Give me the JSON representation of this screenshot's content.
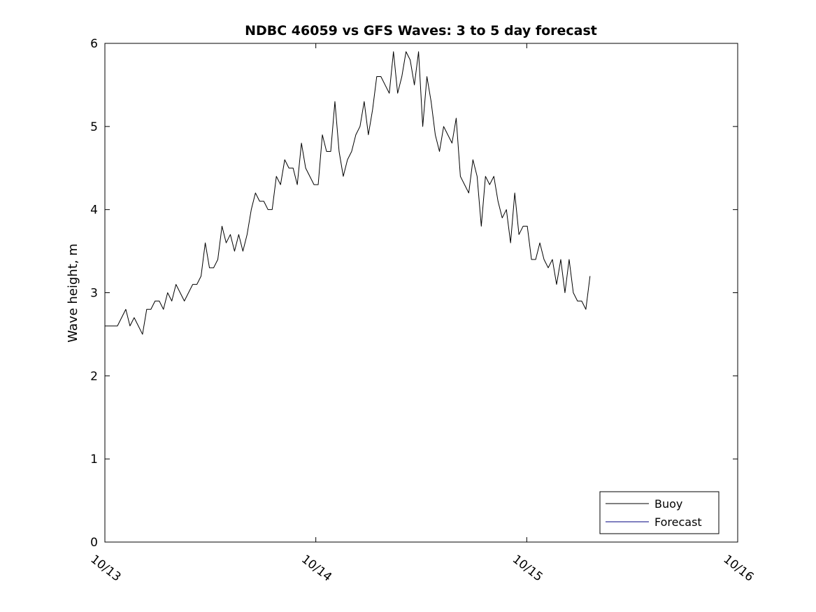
{
  "chart_data": {
    "type": "line",
    "title": "NDBC 46059 vs GFS Waves: 3 to 5 day forecast",
    "xlabel": "",
    "ylabel": "Wave height, m",
    "ylim": [
      0,
      6
    ],
    "xlim_days": [
      0,
      3
    ],
    "y_ticks": [
      0,
      1,
      2,
      3,
      4,
      5,
      6
    ],
    "x_tick_positions": [
      0,
      1,
      2,
      3
    ],
    "x_tick_labels": [
      "10/13",
      "10/14",
      "10/15",
      "10/16"
    ],
    "grid": false,
    "background_color": "#ffffff",
    "axis_color": "#000000",
    "legend": {
      "position": "bottom-right",
      "entries": [
        {
          "name": "Buoy",
          "color": "#000000"
        },
        {
          "name": "Forecast",
          "color": "#000080"
        }
      ]
    },
    "series": [
      {
        "name": "Buoy",
        "color": "#000000",
        "x_start": 0,
        "x_end": 2.3,
        "y": [
          2.6,
          2.6,
          2.6,
          2.6,
          2.7,
          2.8,
          2.6,
          2.7,
          2.6,
          2.5,
          2.8,
          2.8,
          2.9,
          2.9,
          2.8,
          3.0,
          2.9,
          3.1,
          3.0,
          2.9,
          3.0,
          3.1,
          3.1,
          3.2,
          3.6,
          3.3,
          3.3,
          3.4,
          3.8,
          3.6,
          3.7,
          3.5,
          3.7,
          3.5,
          3.7,
          4.0,
          4.2,
          4.1,
          4.1,
          4.0,
          4.0,
          4.4,
          4.3,
          4.6,
          4.5,
          4.5,
          4.3,
          4.8,
          4.5,
          4.4,
          4.3,
          4.3,
          4.9,
          4.7,
          4.7,
          5.3,
          4.7,
          4.4,
          4.6,
          4.7,
          4.9,
          5.0,
          5.3,
          4.9,
          5.2,
          5.6,
          5.6,
          5.5,
          5.4,
          5.9,
          5.4,
          5.6,
          5.9,
          5.8,
          5.5,
          5.9,
          5.0,
          5.6,
          5.3,
          4.9,
          4.7,
          5.0,
          4.9,
          4.8,
          5.1,
          4.4,
          4.3,
          4.2,
          4.6,
          4.4,
          3.8,
          4.4,
          4.3,
          4.4,
          4.1,
          3.9,
          4.0,
          3.6,
          4.2,
          3.7,
          3.8,
          3.8,
          3.4,
          3.4,
          3.6,
          3.4,
          3.3,
          3.4,
          3.1,
          3.4,
          3.0,
          3.4,
          3.0,
          2.9,
          2.9,
          2.8,
          3.2
        ]
      },
      {
        "name": "Forecast",
        "color": "#000080",
        "x_start": 0,
        "x_end": 0,
        "y": []
      }
    ]
  }
}
